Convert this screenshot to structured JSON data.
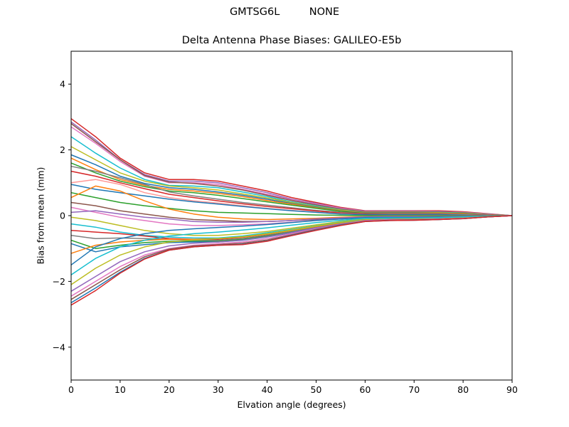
{
  "suptitle": "GMTSG6L         NONE",
  "chart_data": {
    "type": "line",
    "title": "Delta Antenna Phase Biases: GALILEO-E5b",
    "xlabel": "Elvation angle (degrees)",
    "ylabel": "Bias from mean (mm)",
    "xlim": [
      0,
      90
    ],
    "ylim": [
      -5,
      5
    ],
    "xticks": [
      0,
      10,
      20,
      30,
      40,
      50,
      60,
      70,
      80,
      90
    ],
    "yticks": [
      -4,
      -2,
      0,
      2,
      4
    ],
    "ytick_labels": [
      "−4",
      "−2",
      "0",
      "2",
      "4"
    ],
    "grid": false,
    "legend": "none",
    "x": [
      0,
      5,
      10,
      15,
      20,
      25,
      30,
      35,
      40,
      45,
      50,
      55,
      60,
      65,
      70,
      75,
      80,
      85,
      90
    ],
    "series": [
      {
        "color": "#d62728",
        "values": [
          2.95,
          2.4,
          1.75,
          1.3,
          1.1,
          1.1,
          1.05,
          0.9,
          0.75,
          0.55,
          0.4,
          0.25,
          0.15,
          0.15,
          0.15,
          0.15,
          0.12,
          0.06,
          0.0
        ]
      },
      {
        "color": "#9467bd",
        "values": [
          2.85,
          2.3,
          1.7,
          1.25,
          1.05,
          1.05,
          1.0,
          0.85,
          0.7,
          0.5,
          0.37,
          0.23,
          0.14,
          0.14,
          0.14,
          0.13,
          0.1,
          0.05,
          0.0
        ]
      },
      {
        "color": "#e377c2",
        "values": [
          2.7,
          2.2,
          1.65,
          1.2,
          1.0,
          1.0,
          0.95,
          0.8,
          0.65,
          0.48,
          0.35,
          0.22,
          0.13,
          0.13,
          0.13,
          0.12,
          0.1,
          0.05,
          0.0
        ]
      },
      {
        "color": "#8c564b",
        "values": [
          2.8,
          2.25,
          1.7,
          1.22,
          1.02,
          0.98,
          0.9,
          0.78,
          0.62,
          0.46,
          0.33,
          0.2,
          0.12,
          0.12,
          0.12,
          0.11,
          0.09,
          0.04,
          0.0
        ]
      },
      {
        "color": "#17becf",
        "values": [
          2.4,
          1.9,
          1.45,
          1.1,
          0.92,
          0.9,
          0.85,
          0.72,
          0.58,
          0.42,
          0.3,
          0.18,
          0.1,
          0.1,
          0.1,
          0.1,
          0.08,
          0.04,
          0.0
        ]
      },
      {
        "color": "#bcbd22",
        "values": [
          2.1,
          1.7,
          1.3,
          1.05,
          0.9,
          0.85,
          0.78,
          0.66,
          0.54,
          0.4,
          0.28,
          0.17,
          0.1,
          0.1,
          0.1,
          0.09,
          0.07,
          0.03,
          0.0
        ]
      },
      {
        "color": "#1f77b4",
        "values": [
          1.85,
          1.55,
          1.2,
          0.98,
          0.85,
          0.8,
          0.72,
          0.62,
          0.5,
          0.37,
          0.26,
          0.15,
          0.09,
          0.09,
          0.09,
          0.08,
          0.06,
          0.03,
          0.0
        ]
      },
      {
        "color": "#ff7f0e",
        "values": [
          1.75,
          1.4,
          1.1,
          0.92,
          0.8,
          0.75,
          0.68,
          0.58,
          0.46,
          0.35,
          0.24,
          0.14,
          0.08,
          0.08,
          0.08,
          0.08,
          0.06,
          0.03,
          0.0
        ]
      },
      {
        "color": "#2ca02c",
        "values": [
          1.6,
          1.3,
          1.05,
          0.88,
          0.75,
          0.7,
          0.62,
          0.52,
          0.42,
          0.32,
          0.22,
          0.13,
          0.07,
          0.07,
          0.07,
          0.07,
          0.05,
          0.02,
          0.0
        ]
      },
      {
        "color": "#7f7f7f",
        "values": [
          1.5,
          1.35,
          1.15,
          0.95,
          0.72,
          0.6,
          0.5,
          0.4,
          0.32,
          0.24,
          0.16,
          0.1,
          0.06,
          0.06,
          0.06,
          0.06,
          0.04,
          0.02,
          0.0
        ]
      },
      {
        "color": "#d62728",
        "values": [
          1.35,
          1.2,
          1.0,
          0.82,
          0.65,
          0.55,
          0.45,
          0.36,
          0.28,
          0.21,
          0.14,
          0.08,
          0.05,
          0.05,
          0.05,
          0.05,
          0.04,
          0.02,
          0.0
        ]
      },
      {
        "color": "#ff9896",
        "values": [
          1.0,
          1.1,
          0.95,
          0.7,
          0.55,
          0.45,
          0.38,
          0.3,
          0.22,
          0.16,
          0.1,
          0.06,
          0.03,
          0.04,
          0.04,
          0.04,
          0.03,
          0.01,
          0.0
        ]
      },
      {
        "color": "#1f77b4",
        "values": [
          0.95,
          0.8,
          0.7,
          0.6,
          0.5,
          0.42,
          0.35,
          0.28,
          0.21,
          0.15,
          0.1,
          0.05,
          0.03,
          0.03,
          0.03,
          0.03,
          0.02,
          0.01,
          0.0
        ]
      },
      {
        "color": "#2ca02c",
        "values": [
          0.7,
          0.55,
          0.4,
          0.3,
          0.22,
          0.15,
          0.1,
          0.08,
          0.06,
          0.04,
          0.02,
          0.01,
          0.0,
          0.0,
          0.0,
          0.0,
          0.0,
          0.0,
          0.0
        ]
      },
      {
        "color": "#ff7f0e",
        "values": [
          0.55,
          0.9,
          0.75,
          0.45,
          0.2,
          0.05,
          -0.05,
          -0.1,
          -0.12,
          -0.1,
          -0.08,
          -0.05,
          -0.03,
          -0.02,
          -0.02,
          -0.02,
          -0.01,
          0.0,
          0.0
        ]
      },
      {
        "color": "#8c564b",
        "values": [
          0.4,
          0.3,
          0.15,
          0.05,
          -0.05,
          -0.12,
          -0.15,
          -0.18,
          -0.18,
          -0.15,
          -0.12,
          -0.08,
          -0.05,
          -0.04,
          -0.04,
          -0.03,
          -0.02,
          -0.01,
          0.0
        ]
      },
      {
        "color": "#e377c2",
        "values": [
          0.25,
          0.1,
          -0.05,
          -0.15,
          -0.25,
          -0.3,
          -0.3,
          -0.28,
          -0.25,
          -0.2,
          -0.15,
          -0.1,
          -0.06,
          -0.05,
          -0.05,
          -0.04,
          -0.03,
          -0.01,
          0.0
        ]
      },
      {
        "color": "#9467bd",
        "values": [
          0.1,
          0.15,
          0.05,
          -0.05,
          -0.1,
          -0.18,
          -0.2,
          -0.2,
          -0.18,
          -0.15,
          -0.1,
          -0.07,
          -0.04,
          -0.03,
          -0.03,
          -0.03,
          -0.02,
          -0.01,
          0.0
        ]
      },
      {
        "color": "#bcbd22",
        "values": [
          -0.05,
          -0.15,
          -0.3,
          -0.45,
          -0.55,
          -0.6,
          -0.6,
          -0.55,
          -0.48,
          -0.38,
          -0.28,
          -0.18,
          -0.1,
          -0.08,
          -0.08,
          -0.07,
          -0.05,
          -0.02,
          0.0
        ]
      },
      {
        "color": "#17becf",
        "values": [
          -0.25,
          -0.35,
          -0.5,
          -0.6,
          -0.65,
          -0.68,
          -0.68,
          -0.62,
          -0.52,
          -0.42,
          -0.31,
          -0.2,
          -0.12,
          -0.1,
          -0.1,
          -0.08,
          -0.06,
          -0.03,
          0.0
        ]
      },
      {
        "color": "#d62728",
        "values": [
          -0.45,
          -0.5,
          -0.55,
          -0.62,
          -0.7,
          -0.72,
          -0.72,
          -0.66,
          -0.57,
          -0.45,
          -0.33,
          -0.22,
          -0.13,
          -0.11,
          -0.1,
          -0.09,
          -0.07,
          -0.03,
          0.0
        ]
      },
      {
        "color": "#7f7f7f",
        "values": [
          -0.6,
          -0.7,
          -0.68,
          -0.7,
          -0.72,
          -0.75,
          -0.75,
          -0.7,
          -0.6,
          -0.48,
          -0.36,
          -0.24,
          -0.14,
          -0.12,
          -0.11,
          -0.1,
          -0.07,
          -0.03,
          0.0
        ]
      },
      {
        "color": "#2ca02c",
        "values": [
          -0.75,
          -1.0,
          -0.9,
          -0.82,
          -0.78,
          -0.78,
          -0.78,
          -0.72,
          -0.62,
          -0.5,
          -0.37,
          -0.25,
          -0.15,
          -0.12,
          -0.12,
          -0.1,
          -0.07,
          -0.03,
          0.0
        ]
      },
      {
        "color": "#1f77b4",
        "values": [
          -0.85,
          -1.1,
          -0.95,
          -0.88,
          -0.82,
          -0.8,
          -0.8,
          -0.75,
          -0.65,
          -0.52,
          -0.38,
          -0.26,
          -0.16,
          -0.13,
          -0.12,
          -0.11,
          -0.08,
          -0.04,
          0.0
        ]
      },
      {
        "color": "#ff7f0e",
        "values": [
          -1.15,
          -0.9,
          -0.8,
          -0.75,
          -0.72,
          -0.72,
          -0.7,
          -0.65,
          -0.56,
          -0.45,
          -0.33,
          -0.22,
          -0.13,
          -0.11,
          -0.1,
          -0.09,
          -0.07,
          -0.03,
          0.0
        ]
      },
      {
        "color": "#1f77b4",
        "values": [
          -1.5,
          -0.95,
          -0.7,
          -0.55,
          -0.45,
          -0.4,
          -0.36,
          -0.32,
          -0.27,
          -0.21,
          -0.15,
          -0.1,
          -0.06,
          -0.05,
          -0.05,
          -0.04,
          -0.03,
          -0.01,
          0.0
        ]
      },
      {
        "color": "#17becf",
        "values": [
          -1.8,
          -1.3,
          -0.95,
          -0.75,
          -0.62,
          -0.55,
          -0.5,
          -0.44,
          -0.37,
          -0.29,
          -0.21,
          -0.14,
          -0.08,
          -0.07,
          -0.07,
          -0.06,
          -0.04,
          -0.02,
          0.0
        ]
      },
      {
        "color": "#bcbd22",
        "values": [
          -2.1,
          -1.6,
          -1.2,
          -0.95,
          -0.8,
          -0.74,
          -0.7,
          -0.64,
          -0.55,
          -0.44,
          -0.32,
          -0.21,
          -0.13,
          -0.11,
          -0.1,
          -0.09,
          -0.07,
          -0.03,
          0.0
        ]
      },
      {
        "color": "#9467bd",
        "values": [
          -2.3,
          -1.85,
          -1.4,
          -1.1,
          -0.92,
          -0.84,
          -0.8,
          -0.74,
          -0.64,
          -0.51,
          -0.37,
          -0.25,
          -0.15,
          -0.12,
          -0.12,
          -0.1,
          -0.08,
          -0.04,
          0.0
        ]
      },
      {
        "color": "#e377c2",
        "values": [
          -2.45,
          -2.0,
          -1.55,
          -1.2,
          -1.0,
          -0.9,
          -0.85,
          -0.8,
          -0.7,
          -0.55,
          -0.4,
          -0.27,
          -0.16,
          -0.13,
          -0.13,
          -0.11,
          -0.08,
          -0.04,
          0.0
        ]
      },
      {
        "color": "#8c564b",
        "values": [
          -2.55,
          -2.1,
          -1.65,
          -1.25,
          -1.02,
          -0.92,
          -0.88,
          -0.84,
          -0.74,
          -0.58,
          -0.42,
          -0.28,
          -0.17,
          -0.14,
          -0.13,
          -0.12,
          -0.09,
          -0.04,
          0.0
        ]
      },
      {
        "color": "#1f77b4",
        "values": [
          -2.65,
          -2.2,
          -1.72,
          -1.3,
          -1.05,
          -0.95,
          -0.9,
          -0.87,
          -0.77,
          -0.6,
          -0.44,
          -0.29,
          -0.18,
          -0.15,
          -0.14,
          -0.12,
          -0.09,
          -0.04,
          0.0
        ]
      },
      {
        "color": "#d62728",
        "values": [
          -2.72,
          -2.28,
          -1.75,
          -1.32,
          -1.05,
          -0.95,
          -0.9,
          -0.88,
          -0.78,
          -0.61,
          -0.45,
          -0.3,
          -0.18,
          -0.15,
          -0.14,
          -0.12,
          -0.09,
          -0.04,
          0.0
        ]
      }
    ]
  }
}
